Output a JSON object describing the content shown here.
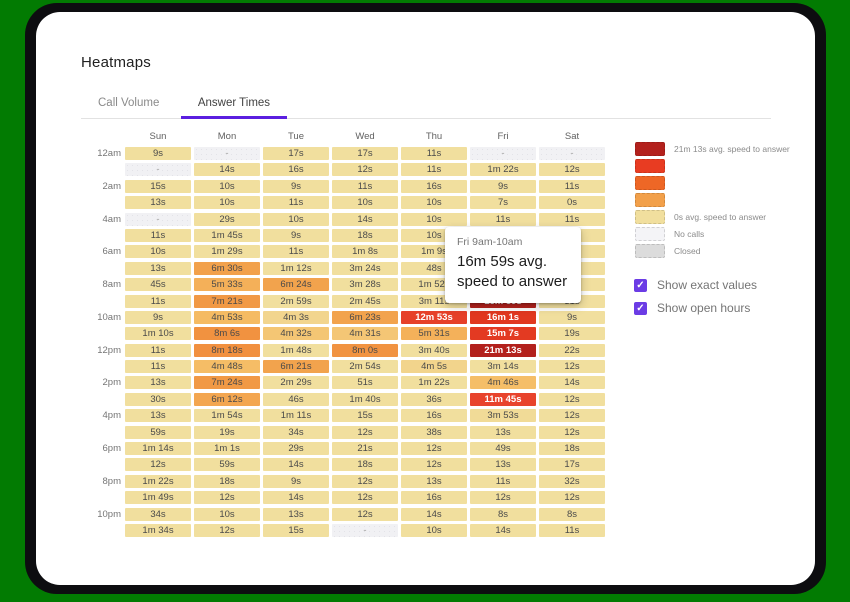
{
  "page_title": "Heatmaps",
  "tabs": [
    {
      "label": "Call Volume",
      "active": false
    },
    {
      "label": "Answer Times",
      "active": true
    }
  ],
  "theme": {
    "accent_tab_underline": "#5b1fe0",
    "accent_checkbox": "#6b3ce5",
    "desktop_background": "#027B02",
    "cell_text_dark": "#4a4a4a",
    "cell_text_light": "#ffffff"
  },
  "heatmap": {
    "day_headers": [
      "Sun",
      "Mon",
      "Tue",
      "Wed",
      "Thu",
      "Fri",
      "Sat"
    ],
    "no_data_marker": "-",
    "color_scale_stops_seconds": [
      {
        "s": 0,
        "color": "#f1df9e"
      },
      {
        "s": 225,
        "color": "#f1df9e"
      },
      {
        "s": 290,
        "color": "#f5bc64"
      },
      {
        "s": 390,
        "color": "#f2a14b"
      },
      {
        "s": 540,
        "color": "#f08a3a"
      },
      {
        "s": 705,
        "color": "#e8432c"
      },
      {
        "s": 980,
        "color": "#e1371f"
      },
      {
        "s": 1020,
        "color": "#b3211d"
      },
      {
        "s": 1400,
        "color": "#b3211d"
      }
    ],
    "white_text_threshold_seconds": 650,
    "rows": [
      {
        "label": "12am",
        "values": [
          "9s",
          "-",
          "17s",
          "17s",
          "11s",
          "-",
          "-"
        ]
      },
      {
        "label": "",
        "values": [
          "-",
          "14s",
          "16s",
          "12s",
          "11s",
          "1m 22s",
          "12s"
        ]
      },
      {
        "label": "2am",
        "values": [
          "15s",
          "10s",
          "9s",
          "11s",
          "16s",
          "9s",
          "11s"
        ]
      },
      {
        "label": "",
        "values": [
          "13s",
          "10s",
          "11s",
          "10s",
          "10s",
          "7s",
          "0s"
        ]
      },
      {
        "label": "4am",
        "values": [
          "-",
          "29s",
          "10s",
          "14s",
          "10s",
          "11s",
          "11s"
        ]
      },
      {
        "label": "",
        "values": [
          "11s",
          "1m 45s",
          "9s",
          "18s",
          "10s",
          null,
          "55s"
        ]
      },
      {
        "label": "6am",
        "values": [
          "10s",
          "1m 29s",
          "11s",
          "1m 8s",
          "1m 9s",
          null,
          "10s"
        ]
      },
      {
        "label": "",
        "values": [
          "13s",
          "6m 30s",
          "1m 12s",
          "3m 24s",
          "48s",
          null,
          "10s"
        ]
      },
      {
        "label": "8am",
        "values": [
          "45s",
          "5m 33s",
          "6m 24s",
          "3m 28s",
          "1m 52s",
          null,
          "11s"
        ]
      },
      {
        "label": "",
        "values": [
          "11s",
          "7m 21s",
          "2m 59s",
          "2m 45s",
          "3m 11s",
          "16m 59s",
          "31s"
        ]
      },
      {
        "label": "10am",
        "values": [
          "9s",
          "4m 53s",
          "4m 3s",
          "6m 23s",
          "12m 53s",
          "16m 1s",
          "9s"
        ]
      },
      {
        "label": "",
        "values": [
          "1m 10s",
          "8m 6s",
          "4m 32s",
          "4m 31s",
          "5m 31s",
          "15m 7s",
          "19s"
        ]
      },
      {
        "label": "12pm",
        "values": [
          "11s",
          "8m 18s",
          "1m 48s",
          "8m 0s",
          "3m 40s",
          "21m 13s",
          "22s"
        ]
      },
      {
        "label": "",
        "values": [
          "11s",
          "4m 48s",
          "6m 21s",
          "2m 54s",
          "4m 5s",
          "3m 14s",
          "12s"
        ]
      },
      {
        "label": "2pm",
        "values": [
          "13s",
          "7m 24s",
          "2m 29s",
          "51s",
          "1m 22s",
          "4m 46s",
          "14s"
        ]
      },
      {
        "label": "",
        "values": [
          "30s",
          "6m 12s",
          "46s",
          "1m 40s",
          "36s",
          "11m 45s",
          "12s"
        ]
      },
      {
        "label": "4pm",
        "values": [
          "13s",
          "1m 54s",
          "1m 11s",
          "15s",
          "16s",
          "3m 53s",
          "12s"
        ]
      },
      {
        "label": "",
        "values": [
          "59s",
          "19s",
          "34s",
          "12s",
          "38s",
          "13s",
          "12s"
        ]
      },
      {
        "label": "6pm",
        "values": [
          "1m 14s",
          "1m 1s",
          "29s",
          "21s",
          "12s",
          "49s",
          "18s"
        ]
      },
      {
        "label": "",
        "values": [
          "12s",
          "59s",
          "14s",
          "18s",
          "12s",
          "13s",
          "17s"
        ]
      },
      {
        "label": "8pm",
        "values": [
          "1m 22s",
          "18s",
          "9s",
          "12s",
          "13s",
          "11s",
          "32s"
        ]
      },
      {
        "label": "",
        "values": [
          "1m 49s",
          "12s",
          "14s",
          "12s",
          "16s",
          "12s",
          "12s"
        ]
      },
      {
        "label": "10pm",
        "values": [
          "34s",
          "10s",
          "13s",
          "12s",
          "14s",
          "8s",
          "8s"
        ]
      },
      {
        "label": "",
        "values": [
          "1m 34s",
          "12s",
          "15s",
          "-",
          "10s",
          "14s",
          "11s"
        ]
      }
    ]
  },
  "legend": {
    "items": [
      {
        "color": "#b3211d",
        "label": "21m 13s avg. speed to answer",
        "dots": false
      },
      {
        "color": "#e83c22",
        "label": "",
        "dots": false
      },
      {
        "color": "#ee6726",
        "label": "",
        "dots": false
      },
      {
        "color": "#f2a04a",
        "label": "",
        "dots": false
      },
      {
        "color": "#f1df9e",
        "label": "0s avg. speed to answer",
        "dots": false
      },
      {
        "color": "#f4f4f7",
        "label": "No calls",
        "dots": false
      },
      {
        "color": "#dcdcdc",
        "label": "Closed",
        "dots": true
      }
    ]
  },
  "controls": {
    "checkboxes": [
      {
        "label": "Show exact values",
        "checked": true
      },
      {
        "label": "Show open hours",
        "checked": true
      }
    ],
    "check_glyph": "✓"
  },
  "tooltip": {
    "title": "Fri 9am-10am",
    "value": "16m 59s avg. speed to answer"
  }
}
